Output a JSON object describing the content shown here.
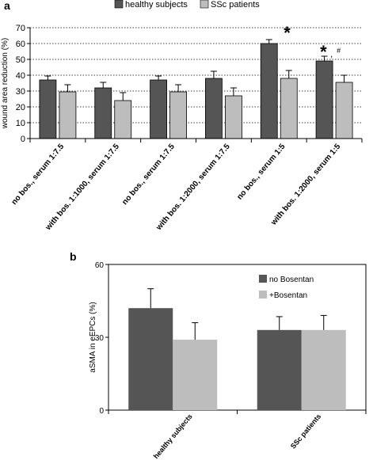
{
  "panel_a": {
    "label": "a",
    "legend": [
      {
        "name": "healthy subjects",
        "color": "#555555"
      },
      {
        "name": "SSc patients",
        "color": "#bdbdbd"
      }
    ]
  },
  "panel_b": {
    "label": "b",
    "legend": [
      {
        "name": "no Bosentan",
        "color": "#555555"
      },
      {
        "name": "+Bosentan",
        "color": "#bdbdbd"
      }
    ]
  },
  "chart_data": [
    {
      "type": "bar",
      "ylabel": "wound area reduction (%)",
      "xlabel": "",
      "ylim": [
        0,
        70
      ],
      "yticks": [
        0,
        10,
        20,
        30,
        40,
        50,
        60,
        70
      ],
      "grid": true,
      "grid_style": "dotted horizontal",
      "legend_placement": "top",
      "categories": [
        "no bos., serum 1:7.5",
        "with bos. 1:1000, serum 1:7.5",
        "no bos., serum 1:7.5",
        "with bos. 1:2000, serum 1:7.5",
        "no bos., serum 1:5",
        "with bos. 1:2000, serum 1:5"
      ],
      "series": [
        {
          "name": "healthy subjects",
          "values": [
            37,
            32,
            37,
            38,
            60,
            49
          ],
          "errors": [
            2.5,
            3.5,
            2.5,
            4.5,
            2.5,
            3
          ],
          "color": "#555555"
        },
        {
          "name": "SSc patients",
          "values": [
            29.5,
            24,
            29.5,
            27,
            38,
            35.5
          ],
          "errors": [
            4.5,
            5,
            4.5,
            5,
            5,
            4.5
          ],
          "color": "#bdbdbd"
        }
      ],
      "annotations": [
        {
          "text": "*",
          "category_index": 4,
          "series": "healthy subjects"
        },
        {
          "text": "*",
          "category_index": 5,
          "series": "healthy subjects"
        },
        {
          "text": ",",
          "category_index": 5,
          "series": "healthy subjects"
        },
        {
          "text": "#",
          "category_index": 5,
          "series": "healthy subjects"
        }
      ]
    },
    {
      "type": "bar",
      "ylabel": "aSMA in eEPCs (%)",
      "xlabel": "",
      "ylim": [
        0,
        60
      ],
      "yticks": [
        0,
        30,
        60
      ],
      "grid": false,
      "legend_placement": "top-right",
      "background": "#ffffff",
      "categories": [
        "healthy subjects",
        "SSc patients"
      ],
      "series": [
        {
          "name": "no Bosentan",
          "values": [
            42,
            33
          ],
          "errors": [
            8,
            5.5
          ],
          "color": "#555555"
        },
        {
          "name": "+Bosentan",
          "values": [
            29,
            33
          ],
          "errors": [
            7,
            6
          ],
          "color": "#bdbdbd"
        }
      ]
    }
  ]
}
